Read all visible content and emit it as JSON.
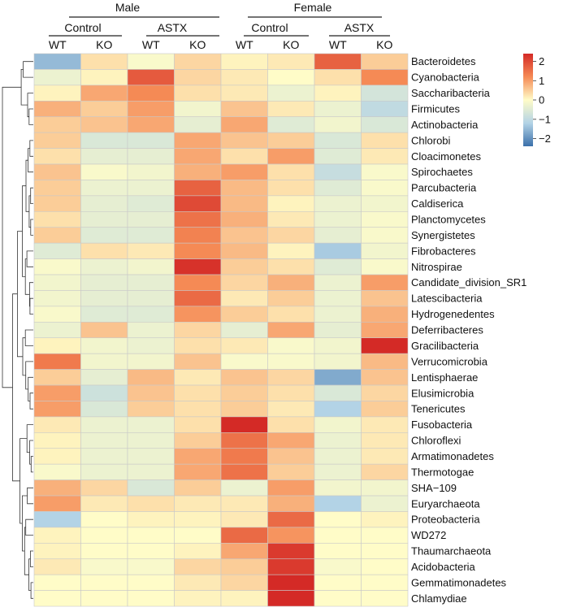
{
  "chart_data": {
    "type": "heatmap",
    "sexes": [
      "Male",
      "Female"
    ],
    "treatments": [
      "Control",
      "ASTX",
      "Control",
      "ASTX"
    ],
    "columns": [
      "WT",
      "KO",
      "WT",
      "KO",
      "WT",
      "KO",
      "WT",
      "KO"
    ],
    "rows": [
      "Bacteroidetes",
      "Cyanobacteria",
      "Saccharibacteria",
      "Firmicutes",
      "Actinobacteria",
      "Chlorobi",
      "Cloacimonetes",
      "Spirochaetes",
      "Parcubacteria",
      "Caldiserica",
      "Planctomycetes",
      "Synergistetes",
      "Fibrobacteres",
      "Nitrospirae",
      "Candidate_division_SR1",
      "Latescibacteria",
      "Hydrogenedentes",
      "Deferribacteres",
      "Gracilibacteria",
      "Verrucomicrobia",
      "Lentisphaerae",
      "Elusimicrobia",
      "Tenericutes",
      "Fusobacteria",
      "Chloroflexi",
      "Armatimonadetes",
      "Thermotogae",
      "SHA−109",
      "Euryarchaeota",
      "Proteobacteria",
      "WD272",
      "Thaumarchaeota",
      "Acidobacteria",
      "Gemmatimonadetes",
      "Chlamydiae"
    ],
    "values": [
      [
        -1.5,
        0.3,
        -0.1,
        0.4,
        0.1,
        0.2,
        1.7,
        0.5
      ],
      [
        -0.3,
        0.1,
        1.8,
        0.4,
        0.2,
        0.0,
        0.3,
        1.2
      ],
      [
        0.1,
        0.9,
        1.2,
        0.3,
        0.2,
        -0.3,
        0.1,
        -0.7
      ],
      [
        0.8,
        0.5,
        1.0,
        -0.2,
        0.6,
        0.2,
        -0.3,
        -1.0
      ],
      [
        0.5,
        0.6,
        0.9,
        -0.4,
        0.9,
        -0.5,
        -0.2,
        -0.6
      ],
      [
        0.5,
        -0.6,
        -0.6,
        0.9,
        0.6,
        0.5,
        -0.6,
        0.3
      ],
      [
        0.3,
        -0.4,
        -0.4,
        0.9,
        0.3,
        1.0,
        -0.5,
        0.2
      ],
      [
        0.6,
        -0.1,
        -0.2,
        0.8,
        1.0,
        0.3,
        -0.9,
        -0.1
      ],
      [
        0.5,
        -0.3,
        -0.3,
        1.7,
        0.7,
        0.3,
        -0.5,
        -0.1
      ],
      [
        0.5,
        -0.4,
        -0.5,
        2.0,
        0.7,
        0.1,
        -0.3,
        -0.2
      ],
      [
        0.3,
        -0.4,
        -0.4,
        1.5,
        0.8,
        0.2,
        -0.3,
        -0.1
      ],
      [
        0.5,
        -0.5,
        -0.5,
        1.3,
        0.6,
        0.4,
        -0.4,
        -0.1
      ],
      [
        -0.5,
        0.3,
        0.2,
        1.2,
        0.7,
        0.1,
        -1.3,
        -0.2
      ],
      [
        -0.1,
        -0.3,
        -0.2,
        2.3,
        0.5,
        0.3,
        -0.5,
        -0.1
      ],
      [
        -0.2,
        -0.4,
        -0.4,
        1.2,
        0.4,
        0.8,
        -0.3,
        1.0
      ],
      [
        -0.2,
        -0.4,
        -0.4,
        1.6,
        0.2,
        0.5,
        -0.3,
        0.6
      ],
      [
        -0.1,
        -0.5,
        -0.5,
        1.1,
        0.5,
        0.3,
        -0.3,
        0.8
      ],
      [
        -0.3,
        0.6,
        -0.3,
        0.4,
        -0.4,
        0.9,
        -0.4,
        0.9
      ],
      [
        0.1,
        -0.2,
        -0.3,
        0.3,
        0.2,
        -0.1,
        -0.2,
        2.4
      ],
      [
        1.4,
        -0.2,
        -0.2,
        0.6,
        -0.1,
        -0.1,
        -0.2,
        0.7
      ],
      [
        0.5,
        -0.4,
        0.7,
        0.2,
        0.6,
        0.4,
        -1.7,
        0.6
      ],
      [
        1.0,
        -0.8,
        0.6,
        0.3,
        0.5,
        0.3,
        -0.6,
        0.4
      ],
      [
        1.0,
        -0.6,
        0.5,
        0.3,
        0.5,
        0.2,
        -1.2,
        0.5
      ],
      [
        0.2,
        -0.3,
        -0.3,
        0.3,
        2.6,
        0.3,
        -0.2,
        0.2
      ],
      [
        0.1,
        -0.3,
        -0.3,
        0.5,
        1.5,
        0.9,
        -0.3,
        0.2
      ],
      [
        0.1,
        -0.3,
        -0.3,
        0.9,
        1.4,
        0.6,
        -0.3,
        0.2
      ],
      [
        -0.1,
        -0.3,
        -0.3,
        0.9,
        1.5,
        0.5,
        -0.3,
        0.4
      ],
      [
        0.8,
        0.4,
        -0.6,
        0.5,
        -0.3,
        1.0,
        -0.2,
        -0.2
      ],
      [
        1.0,
        0.2,
        0.3,
        0.2,
        0.2,
        0.8,
        -1.2,
        -0.3
      ],
      [
        -1.2,
        0.0,
        0.1,
        0.1,
        0.2,
        1.6,
        0.0,
        0.1
      ],
      [
        0.1,
        0.0,
        0.0,
        0.0,
        1.6,
        1.1,
        0.0,
        0.0
      ],
      [
        0.1,
        0.0,
        0.0,
        0.1,
        0.9,
        2.2,
        0.0,
        0.0
      ],
      [
        0.2,
        -0.1,
        -0.1,
        0.4,
        0.5,
        2.2,
        -0.1,
        0.0
      ],
      [
        0.0,
        0.0,
        0.0,
        0.2,
        0.4,
        2.4,
        0.0,
        0.0
      ],
      [
        0.0,
        0.0,
        0.0,
        0.1,
        0.1,
        2.6,
        0.0,
        0.0
      ]
    ],
    "colorbar": {
      "ticks": [
        "2",
        "1",
        "0",
        "−1",
        "−2"
      ],
      "tick_values": [
        2,
        1,
        0,
        -1,
        -2
      ],
      "range": [
        -2.4,
        2.4
      ]
    },
    "colors": {
      "low": "#3b70aa",
      "mid": "#fffcc8",
      "high": "#d42a26",
      "grid": "#c9c9c9",
      "tree": "#333333"
    }
  }
}
